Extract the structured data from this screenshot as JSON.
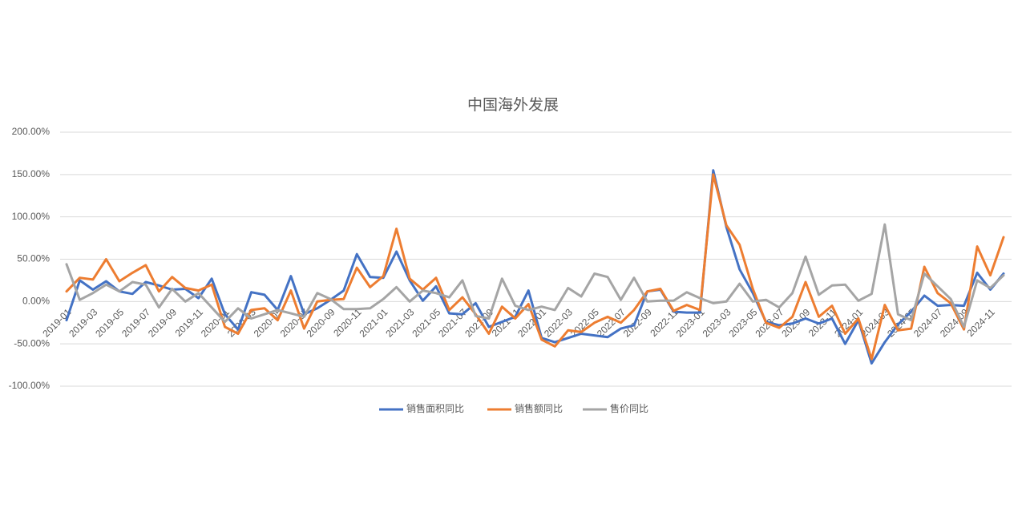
{
  "chart_data": {
    "type": "line",
    "title": "中国海外发展",
    "categories": [
      "2019-01",
      null,
      "2019-03",
      null,
      "2019-05",
      null,
      "2019-07",
      null,
      "2019-09",
      null,
      "2019-11",
      null,
      "2020-01",
      null,
      "2020-03",
      null,
      "2020-05",
      null,
      "2020-07",
      null,
      "2020-09",
      null,
      "2020-11",
      null,
      "2021-01",
      null,
      "2021-03",
      null,
      "2021-05",
      null,
      "2021-07",
      null,
      "2021-09",
      null,
      "2021-11",
      null,
      "2022-01",
      null,
      "2022-03",
      null,
      "2022-05",
      null,
      "2022-07",
      null,
      "2022-09",
      null,
      "2022-11",
      null,
      "2023-01",
      null,
      "2023-03",
      null,
      "2023-05",
      null,
      "2023-07",
      null,
      "2023-09",
      null,
      "2023-11",
      null,
      "2024-01",
      null,
      "2024-03",
      null,
      "2024-05",
      null,
      "2024-07",
      null,
      "2024-09",
      null,
      "2024-11",
      null
    ],
    "series": [
      {
        "name": "销售面积同比",
        "color": "#4472c4",
        "values": [
          -22,
          25,
          14,
          24,
          12,
          9,
          23,
          19,
          14,
          15,
          4,
          27,
          -15,
          -33,
          11,
          8,
          -10,
          30,
          -15,
          -8,
          2,
          13,
          56,
          29,
          28,
          59,
          25,
          1,
          18,
          -14,
          -15,
          -2,
          -30,
          -24,
          -18,
          13,
          -43,
          -48,
          -43,
          -38,
          -40,
          -42,
          -32,
          -28,
          12,
          14,
          -12,
          -13,
          -13,
          155,
          88,
          38,
          10,
          -24,
          -28,
          -26,
          -20,
          -26,
          -20,
          -50,
          -22,
          -73,
          -48,
          -27,
          -12,
          7,
          -5,
          -4,
          -5,
          34,
          14,
          33
        ]
      },
      {
        "name": "销售额同比",
        "color": "#ed7d31",
        "values": [
          12,
          28,
          26,
          50,
          24,
          34,
          43,
          12,
          29,
          16,
          13,
          20,
          -30,
          -38,
          -10,
          -8,
          -22,
          13,
          -32,
          0,
          2,
          3,
          40,
          17,
          30,
          86,
          27,
          14,
          28,
          -10,
          5,
          -15,
          -38,
          -6,
          -20,
          -3,
          -45,
          -53,
          -34,
          -36,
          -25,
          -18,
          -25,
          -10,
          12,
          15,
          -11,
          -4,
          -10,
          150,
          90,
          67,
          15,
          -25,
          -31,
          -18,
          23,
          -18,
          -5,
          -38,
          -20,
          -68,
          -4,
          -34,
          -32,
          41,
          10,
          -2,
          -33,
          65,
          31,
          76
        ]
      },
      {
        "name": "售价同比",
        "color": "#a5a5a5",
        "values": [
          44,
          2,
          10,
          20,
          12,
          23,
          20,
          -7,
          15,
          0,
          10,
          -7,
          -24,
          -8,
          -20,
          -15,
          -10,
          -14,
          -18,
          10,
          3,
          -9,
          -9,
          -8,
          3,
          17,
          0,
          13,
          10,
          5,
          25,
          -17,
          -20,
          27,
          -5,
          -10,
          -6,
          -10,
          16,
          6,
          33,
          29,
          2,
          28,
          0,
          1,
          1,
          11,
          4,
          -2,
          0,
          21,
          0,
          2,
          -7,
          10,
          53,
          8,
          19,
          20,
          1,
          9,
          91,
          -15,
          -22,
          33,
          18,
          3,
          -30,
          25,
          16,
          31
        ]
      }
    ],
    "ylim": [
      -100,
      200
    ],
    "yticks": [
      {
        "value": -100,
        "label": "-100.00%"
      },
      {
        "value": -50,
        "label": "-50.00%"
      },
      {
        "value": 0,
        "label": "0.00%"
      },
      {
        "value": 50,
        "label": "50.00%"
      },
      {
        "value": 100,
        "label": "100.00%"
      },
      {
        "value": 150,
        "label": "150.00%"
      },
      {
        "value": 200,
        "label": "200.00%"
      }
    ],
    "grid": true,
    "legend": "bottom"
  }
}
